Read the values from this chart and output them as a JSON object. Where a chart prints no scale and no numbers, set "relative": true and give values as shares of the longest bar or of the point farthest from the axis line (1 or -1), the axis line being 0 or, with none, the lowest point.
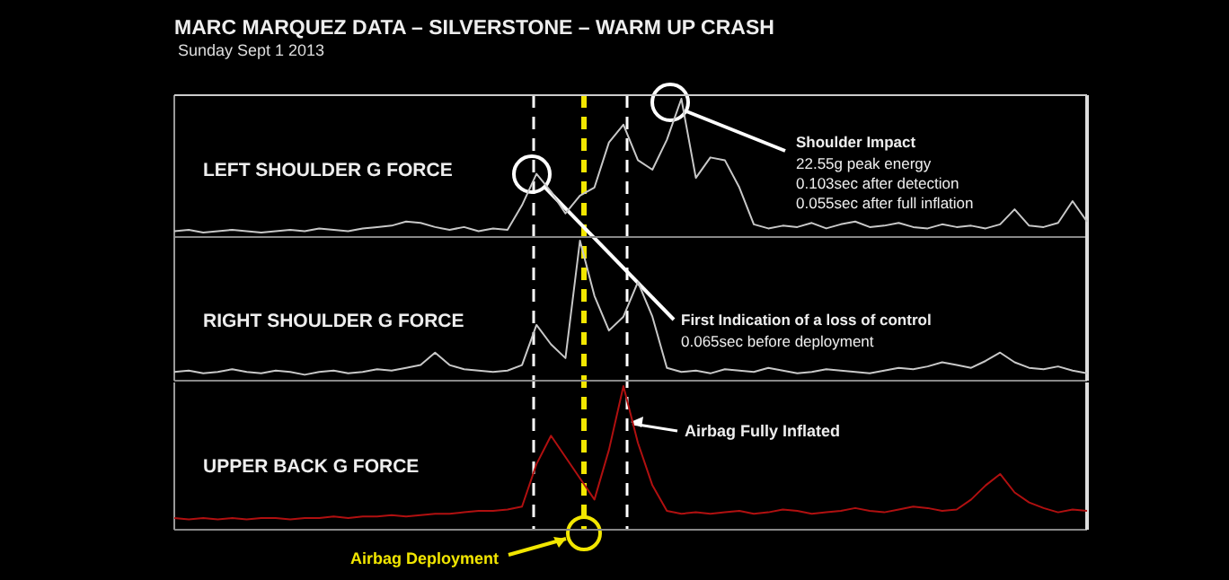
{
  "chart_data": [
    {
      "type": "line",
      "title": "MARC MARQUEZ DATA – SILVERSTONE – WARM UP CRASH",
      "subtitle": "Sunday Sept 1 2013",
      "relative": true,
      "categories": [
        null,
        null,
        null,
        null,
        null,
        null,
        null,
        null,
        null,
        null,
        null,
        null,
        null,
        null,
        null,
        null,
        null,
        null,
        null,
        null,
        null,
        null,
        null,
        null,
        null,
        null,
        null,
        null,
        null,
        null,
        null,
        null,
        null,
        null,
        null,
        null,
        null,
        null,
        null,
        null,
        null,
        null,
        null,
        null,
        null,
        null,
        null,
        null,
        null,
        null,
        null,
        null,
        null,
        null,
        null,
        null,
        null,
        null,
        null,
        null,
        null,
        null,
        null,
        null
      ],
      "series": [
        {
          "name": "LEFT SHOULDER G FORCE",
          "color": "#c8c8c8",
          "values": [
            0.03,
            0.04,
            0.02,
            0.03,
            0.04,
            0.03,
            0.02,
            0.03,
            0.04,
            0.03,
            0.05,
            0.04,
            0.03,
            0.05,
            0.06,
            0.07,
            0.1,
            0.09,
            0.06,
            0.04,
            0.06,
            0.03,
            0.05,
            0.04,
            0.22,
            0.45,
            0.32,
            0.16,
            0.29,
            0.35,
            0.68,
            0.81,
            0.55,
            0.48,
            0.7,
            1,
            0.42,
            0.57,
            0.55,
            0.35,
            0.08,
            0.05,
            0.07,
            0.06,
            0.09,
            0.05,
            0.08,
            0.1,
            0.06,
            0.07,
            0.09,
            0.06,
            0.05,
            0.08,
            0.06,
            0.07,
            0.05,
            0.08,
            0.19,
            0.07,
            0.06,
            0.09,
            0.25,
            0.1
          ]
        }
      ],
      "annotations": [
        "Shoulder Impact",
        "22.55g peak energy",
        "0.103sec after detection",
        "0.055sec after full inflation",
        "First Indication of a loss of control",
        "0.065sec before deployment"
      ]
    },
    {
      "type": "line",
      "relative": true,
      "categories": [
        null,
        null,
        null,
        null,
        null,
        null,
        null,
        null,
        null,
        null,
        null,
        null,
        null,
        null,
        null,
        null,
        null,
        null,
        null,
        null,
        null,
        null,
        null,
        null,
        null,
        null,
        null,
        null,
        null,
        null,
        null,
        null,
        null,
        null,
        null,
        null,
        null,
        null,
        null,
        null,
        null,
        null,
        null,
        null,
        null,
        null,
        null,
        null,
        null,
        null,
        null,
        null,
        null,
        null,
        null,
        null,
        null,
        null,
        null,
        null,
        null,
        null,
        null,
        null
      ],
      "series": [
        {
          "name": "RIGHT SHOULDER G FORCE",
          "color": "#c8c8c8",
          "values": [
            0.05,
            0.06,
            0.04,
            0.05,
            0.07,
            0.05,
            0.04,
            0.06,
            0.05,
            0.03,
            0.05,
            0.06,
            0.04,
            0.05,
            0.07,
            0.06,
            0.08,
            0.1,
            0.19,
            0.1,
            0.07,
            0.06,
            0.05,
            0.06,
            0.1,
            0.39,
            0.25,
            0.15,
            1,
            0.6,
            0.35,
            0.45,
            0.7,
            0.45,
            0.08,
            0.05,
            0.06,
            0.04,
            0.07,
            0.06,
            0.05,
            0.08,
            0.06,
            0.04,
            0.05,
            0.07,
            0.06,
            0.05,
            0.04,
            0.06,
            0.08,
            0.07,
            0.09,
            0.12,
            0.1,
            0.08,
            0.13,
            0.19,
            0.12,
            0.08,
            0.07,
            0.09,
            0.06,
            0.04
          ]
        }
      ]
    },
    {
      "type": "line",
      "relative": true,
      "categories": [
        null,
        null,
        null,
        null,
        null,
        null,
        null,
        null,
        null,
        null,
        null,
        null,
        null,
        null,
        null,
        null,
        null,
        null,
        null,
        null,
        null,
        null,
        null,
        null,
        null,
        null,
        null,
        null,
        null,
        null,
        null,
        null,
        null,
        null,
        null,
        null,
        null,
        null,
        null,
        null,
        null,
        null,
        null,
        null,
        null,
        null,
        null,
        null,
        null,
        null,
        null,
        null,
        null,
        null,
        null,
        null,
        null,
        null,
        null,
        null,
        null,
        null,
        null,
        null
      ],
      "series": [
        {
          "name": "UPPER BACK G FORCE",
          "color": "#b01010",
          "values": [
            0.07,
            0.06,
            0.07,
            0.06,
            0.07,
            0.06,
            0.07,
            0.07,
            0.06,
            0.07,
            0.07,
            0.08,
            0.07,
            0.08,
            0.08,
            0.09,
            0.08,
            0.09,
            0.1,
            0.1,
            0.11,
            0.12,
            0.12,
            0.13,
            0.15,
            0.45,
            0.65,
            0.5,
            0.35,
            0.2,
            0.55,
            1,
            0.6,
            0.3,
            0.12,
            0.1,
            0.11,
            0.1,
            0.11,
            0.12,
            0.1,
            0.11,
            0.13,
            0.12,
            0.1,
            0.11,
            0.12,
            0.14,
            0.12,
            0.11,
            0.13,
            0.15,
            0.14,
            0.12,
            0.13,
            0.2,
            0.3,
            0.38,
            0.25,
            0.18,
            0.14,
            0.11,
            0.13,
            0.12
          ]
        }
      ],
      "annotations": [
        "Airbag Deployment",
        "Airbag Fully Inflated"
      ]
    }
  ]
}
